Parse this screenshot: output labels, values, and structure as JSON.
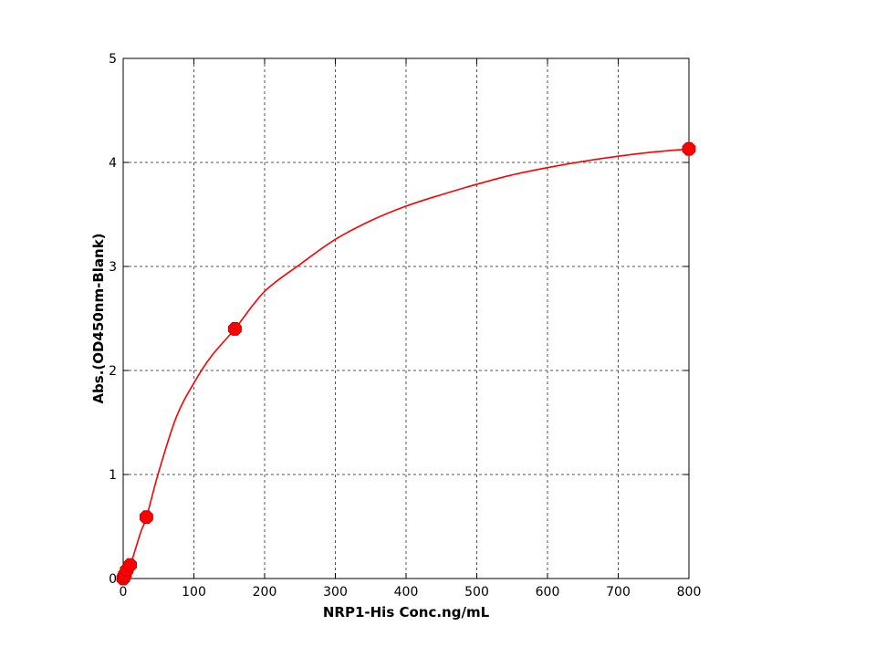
{
  "chart_data": {
    "type": "scatter",
    "title": "",
    "xlabel": "NRP1-His Conc.ng/mL",
    "ylabel": "Abs.(OD450nm-Blank)",
    "xlim": [
      0,
      800
    ],
    "ylim": [
      0,
      5
    ],
    "xticks": [
      0,
      100,
      200,
      300,
      400,
      500,
      600,
      700,
      800
    ],
    "yticks": [
      0,
      1,
      2,
      3,
      4,
      5
    ],
    "grid": true,
    "legend": "none",
    "colors": {
      "series": "#ff0000",
      "grid": "#555555",
      "axes": "#000000"
    },
    "series": [
      {
        "points": [
          {
            "x": 0,
            "y": 0.0
          },
          {
            "x": 1.2,
            "y": 0.02
          },
          {
            "x": 2.5,
            "y": 0.04
          },
          {
            "x": 4.9,
            "y": 0.08
          },
          {
            "x": 9.8,
            "y": 0.13
          },
          {
            "x": 32.8,
            "y": 0.59
          },
          {
            "x": 158,
            "y": 2.4
          },
          {
            "x": 800,
            "y": 4.13
          }
        ],
        "fit_curve": [
          {
            "x": 0,
            "y": 0.0
          },
          {
            "x": 10,
            "y": 0.13
          },
          {
            "x": 25,
            "y": 0.45
          },
          {
            "x": 33,
            "y": 0.59
          },
          {
            "x": 50,
            "y": 1.02
          },
          {
            "x": 75,
            "y": 1.55
          },
          {
            "x": 100,
            "y": 1.88
          },
          {
            "x": 125,
            "y": 2.14
          },
          {
            "x": 158,
            "y": 2.4
          },
          {
            "x": 200,
            "y": 2.76
          },
          {
            "x": 250,
            "y": 3.02
          },
          {
            "x": 300,
            "y": 3.26
          },
          {
            "x": 350,
            "y": 3.44
          },
          {
            "x": 400,
            "y": 3.58
          },
          {
            "x": 450,
            "y": 3.69
          },
          {
            "x": 500,
            "y": 3.79
          },
          {
            "x": 550,
            "y": 3.88
          },
          {
            "x": 600,
            "y": 3.95
          },
          {
            "x": 650,
            "y": 4.01
          },
          {
            "x": 700,
            "y": 4.06
          },
          {
            "x": 750,
            "y": 4.1
          },
          {
            "x": 800,
            "y": 4.13
          }
        ]
      }
    ]
  }
}
